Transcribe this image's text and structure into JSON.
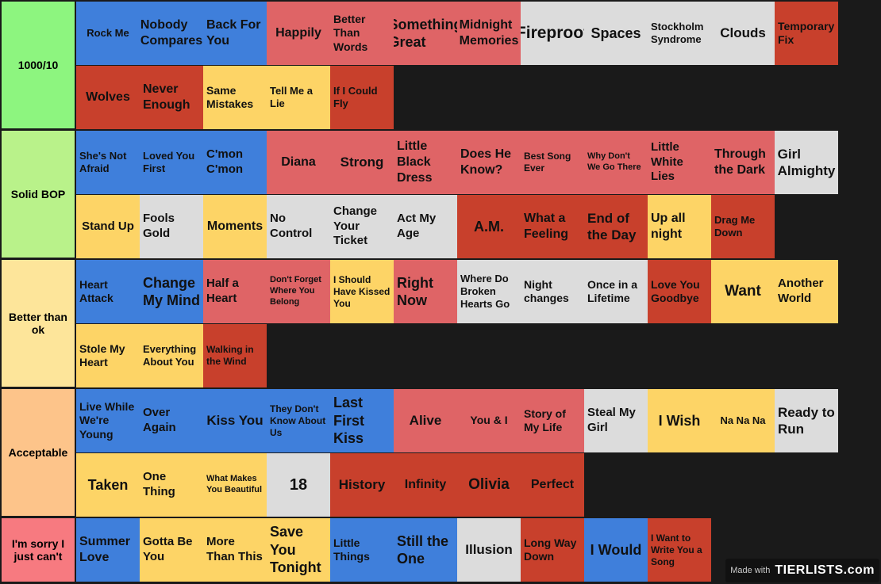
{
  "colors": {
    "blue": "#3f7fdb",
    "pink": "#df6466",
    "gray": "#dcdcdc",
    "red": "#c8402c",
    "yellow": "#fdd466",
    "tier_colors": [
      "#8df57f",
      "#b9f28a",
      "#fde59a",
      "#fdc48a",
      "#f77a80"
    ]
  },
  "tiers": [
    {
      "label": "1000/10",
      "rows": [
        [
          {
            "t": "Rock Me",
            "c": "blue",
            "s": 13
          },
          {
            "t": "Nobody Compares",
            "c": "blue",
            "s": 16
          },
          {
            "t": "Back For You",
            "c": "blue",
            "s": 16
          },
          {
            "t": "Happily",
            "c": "pink",
            "s": 16
          },
          {
            "t": "Better Than Words",
            "c": "pink",
            "s": 14
          },
          {
            "t": "Something Great",
            "c": "pink",
            "s": 18
          },
          {
            "t": "Midnight Memories",
            "c": "pink",
            "s": 16
          },
          {
            "t": "Fireproof",
            "c": "gray",
            "s": 21
          },
          {
            "t": "Spaces",
            "c": "gray",
            "s": 18
          },
          {
            "t": "Stockholm Syndrome",
            "c": "gray",
            "s": 13
          },
          {
            "t": "Clouds",
            "c": "gray",
            "s": 17
          },
          {
            "t": "Temporary Fix",
            "c": "red",
            "s": 14
          }
        ],
        [
          {
            "t": "Wolves",
            "c": "red",
            "s": 16
          },
          {
            "t": "Never Enough",
            "c": "red",
            "s": 16
          },
          {
            "t": "Same Mistakes",
            "c": "yellow",
            "s": 14
          },
          {
            "t": "Tell Me a Lie",
            "c": "yellow",
            "s": 13
          },
          {
            "t": "If I Could Fly",
            "c": "red",
            "s": 13
          }
        ]
      ]
    },
    {
      "label": "Solid BOP",
      "rows": [
        [
          {
            "t": "She's Not Afraid",
            "c": "blue",
            "s": 13
          },
          {
            "t": "Loved You First",
            "c": "blue",
            "s": 13
          },
          {
            "t": "C'mon C'mon",
            "c": "blue",
            "s": 15
          },
          {
            "t": "Diana",
            "c": "pink",
            "s": 16
          },
          {
            "t": "Strong",
            "c": "pink",
            "s": 17
          },
          {
            "t": "Little Black Dress",
            "c": "pink",
            "s": 16
          },
          {
            "t": "Does He Know?",
            "c": "pink",
            "s": 16
          },
          {
            "t": "Best Song Ever",
            "c": "pink",
            "s": 12
          },
          {
            "t": "Why Don't We Go There",
            "c": "pink",
            "s": 11
          },
          {
            "t": "Little White Lies",
            "c": "pink",
            "s": 15
          },
          {
            "t": "Through the Dark",
            "c": "pink",
            "s": 16
          },
          {
            "t": "Girl Almighty",
            "c": "gray",
            "s": 17
          }
        ],
        [
          {
            "t": "Stand Up",
            "c": "yellow",
            "s": 15
          },
          {
            "t": "Fools Gold",
            "c": "gray",
            "s": 15
          },
          {
            "t": "Moments",
            "c": "yellow",
            "s": 16
          },
          {
            "t": "No Control",
            "c": "gray",
            "s": 15
          },
          {
            "t": "Change Your Ticket",
            "c": "gray",
            "s": 15
          },
          {
            "t": "Act My Age",
            "c": "gray",
            "s": 15
          },
          {
            "t": "A.M.",
            "c": "red",
            "s": 18
          },
          {
            "t": "What a Feeling",
            "c": "red",
            "s": 16
          },
          {
            "t": "End of the Day",
            "c": "red",
            "s": 17
          },
          {
            "t": "Up all night",
            "c": "yellow",
            "s": 16
          },
          {
            "t": "Drag Me Down",
            "c": "red",
            "s": 13
          }
        ]
      ]
    },
    {
      "label": "Better than ok",
      "rows": [
        [
          {
            "t": "Heart Attack",
            "c": "blue",
            "s": 14
          },
          {
            "t": "Change My Mind",
            "c": "blue",
            "s": 18
          },
          {
            "t": "Half a Heart",
            "c": "pink",
            "s": 15
          },
          {
            "t": "Don't Forget Where You Belong",
            "c": "pink",
            "s": 11
          },
          {
            "t": "I Should Have Kissed You",
            "c": "yellow",
            "s": 12
          },
          {
            "t": "Right Now",
            "c": "pink",
            "s": 18
          },
          {
            "t": "Where Do Broken Hearts Go",
            "c": "gray",
            "s": 13
          },
          {
            "t": "Night changes",
            "c": "gray",
            "s": 14
          },
          {
            "t": "Once in a Lifetime",
            "c": "gray",
            "s": 14
          },
          {
            "t": "Love You Goodbye",
            "c": "red",
            "s": 14
          },
          {
            "t": "Want",
            "c": "yellow",
            "s": 19
          },
          {
            "t": "Another World",
            "c": "yellow",
            "s": 15
          }
        ],
        [
          {
            "t": "Stole My Heart",
            "c": "yellow",
            "s": 14
          },
          {
            "t": "Everything About You",
            "c": "yellow",
            "s": 13
          },
          {
            "t": "Walking in the Wind",
            "c": "red",
            "s": 12
          }
        ]
      ]
    },
    {
      "label": "Acceptable",
      "rows": [
        [
          {
            "t": "Live While We're Young",
            "c": "blue",
            "s": 14
          },
          {
            "t": "Over Again",
            "c": "blue",
            "s": 15
          },
          {
            "t": "Kiss You",
            "c": "blue",
            "s": 17
          },
          {
            "t": "They Don't Know About Us",
            "c": "blue",
            "s": 12
          },
          {
            "t": "Last First Kiss",
            "c": "blue",
            "s": 18
          },
          {
            "t": "Alive",
            "c": "pink",
            "s": 17
          },
          {
            "t": "You & I",
            "c": "pink",
            "s": 14
          },
          {
            "t": "Story of My Life",
            "c": "pink",
            "s": 14
          },
          {
            "t": "Steal My Girl",
            "c": "gray",
            "s": 15
          },
          {
            "t": "I Wish",
            "c": "yellow",
            "s": 18
          },
          {
            "t": "Na Na Na",
            "c": "yellow",
            "s": 13
          },
          {
            "t": "Ready to Run",
            "c": "gray",
            "s": 17
          }
        ],
        [
          {
            "t": "Taken",
            "c": "yellow",
            "s": 18
          },
          {
            "t": "One Thing",
            "c": "yellow",
            "s": 15
          },
          {
            "t": "What Makes You Beautiful",
            "c": "yellow",
            "s": 11
          },
          {
            "t": "18",
            "c": "gray",
            "s": 20
          },
          {
            "t": "History",
            "c": "red",
            "s": 17
          },
          {
            "t": "Infinity",
            "c": "red",
            "s": 16
          },
          {
            "t": "Olivia",
            "c": "red",
            "s": 19
          },
          {
            "t": "Perfect",
            "c": "red",
            "s": 16
          }
        ]
      ]
    },
    {
      "label": "I'm sorry I just can't",
      "rows": [
        [
          {
            "t": "Summer Love",
            "c": "blue",
            "s": 16
          },
          {
            "t": "Gotta Be You",
            "c": "yellow",
            "s": 15
          },
          {
            "t": "More Than This",
            "c": "yellow",
            "s": 15
          },
          {
            "t": "Save You Tonight",
            "c": "yellow",
            "s": 18
          },
          {
            "t": "Little Things",
            "c": "blue",
            "s": 14
          },
          {
            "t": "Still the One",
            "c": "blue",
            "s": 18
          },
          {
            "t": "Illusion",
            "c": "gray",
            "s": 17
          },
          {
            "t": "Long Way Down",
            "c": "red",
            "s": 14
          },
          {
            "t": "I Would",
            "c": "blue",
            "s": 18
          },
          {
            "t": "I Want to Write You a Song",
            "c": "red",
            "s": 12
          }
        ]
      ]
    }
  ],
  "watermark": {
    "made_with": "Made with",
    "brand": "TIERLISTS.com"
  }
}
